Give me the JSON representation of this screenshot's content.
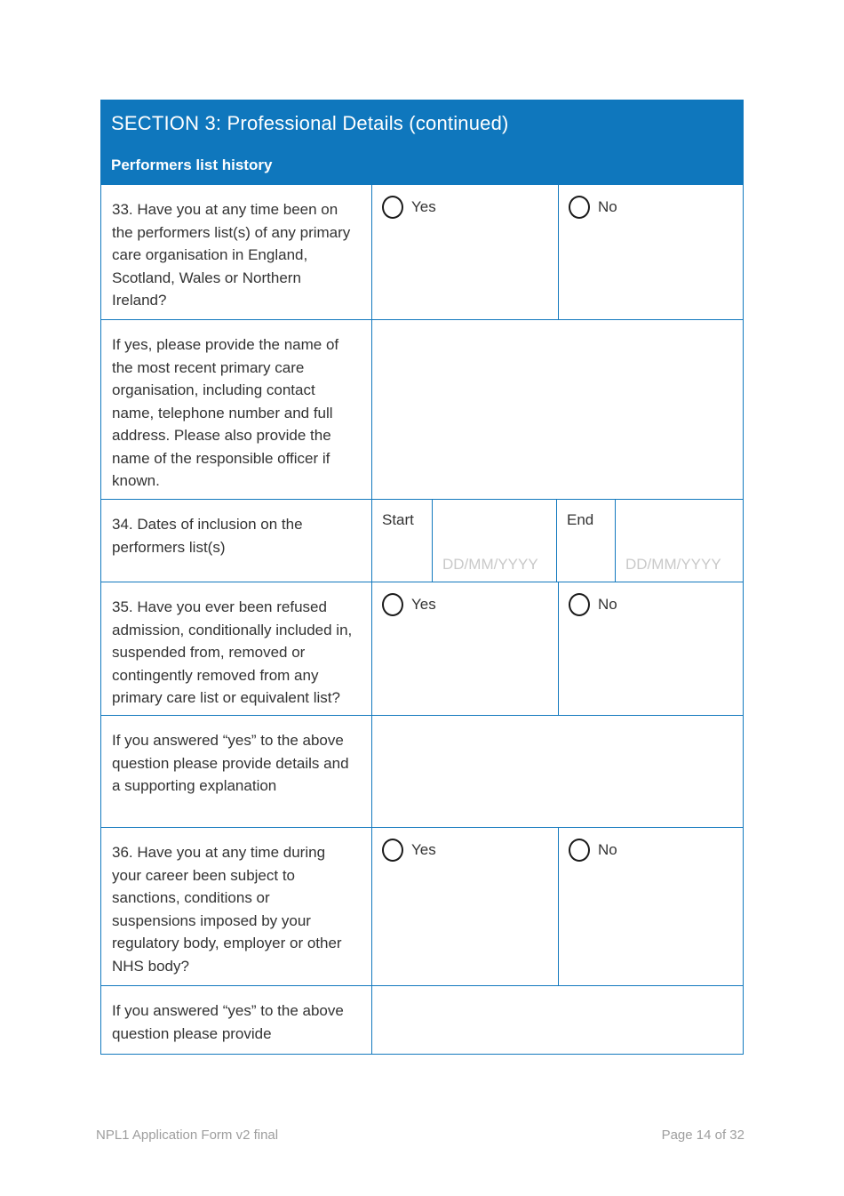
{
  "header": {
    "title": "SECTION 3: Professional Details (continued)",
    "subtitle": "Performers list history"
  },
  "labels": {
    "yes": "Yes",
    "no": "No",
    "start": "Start",
    "end": "End",
    "date_placeholder": "DD/MM/YYYY"
  },
  "questions": {
    "q33": "33. Have you at any time been on the performers list(s) of any primary care organisation in England, Scotland, Wales or Northern Ireland?",
    "q33_followup": "If yes, please provide the name of the most recent primary care organisation, including contact name, telephone number and full address.  Please also provide the name of the responsible officer if known.",
    "q34": "34. Dates of inclusion on the performers list(s)",
    "q35": "35. Have you ever been refused admission, conditionally included in, suspended from, removed or contingently removed from any primary care list or equivalent list?",
    "q35_followup": "If you answered “yes” to the above question please provide details and a supporting explanation",
    "q36": "36. Have you at any time during your career been subject to sanctions, conditions or suspensions imposed by your regulatory body, employer or other NHS body?",
    "q36_followup": "If you answered “yes” to the above question please provide"
  },
  "footer": {
    "left": "NPL1 Application Form v2 final",
    "right": "Page 14 of 32"
  },
  "colors": {
    "header_bg": "#0F77BD",
    "table_border": "#1379BE",
    "text": "#333333",
    "placeholder": "#C9C9C9",
    "footer_text": "#9E9E9E"
  }
}
